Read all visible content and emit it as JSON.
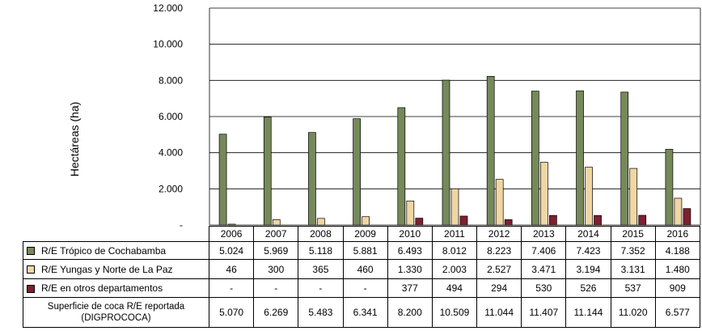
{
  "colors": {
    "tropico": "#76895A",
    "yungas": "#F0D6A4",
    "otros": "#7E2030",
    "grid": "#000000"
  },
  "chart_data": {
    "type": "bar",
    "title": "",
    "xlabel": "",
    "ylabel": "Hectáreas (ha)",
    "ylim": [
      0,
      12000
    ],
    "yticks": [
      "-",
      "2.000",
      "4.000",
      "6.000",
      "8.000",
      "10.000",
      "12.000"
    ],
    "ytick_values": [
      0,
      2000,
      4000,
      6000,
      8000,
      10000,
      12000
    ],
    "grid": true,
    "legend": "table-left",
    "categories": [
      "2006",
      "2007",
      "2008",
      "2009",
      "2010",
      "2011",
      "2012",
      "2013",
      "2014",
      "2015",
      "2016"
    ],
    "series": [
      {
        "name": "R/E Trópico de Cochabamba",
        "values": [
          5024,
          5969,
          5118,
          5881,
          6493,
          8012,
          8223,
          7406,
          7423,
          7352,
          4188
        ],
        "labels": [
          "5.024",
          "5.969",
          "5.118",
          "5.881",
          "6.493",
          "8.012",
          "8.223",
          "7.406",
          "7.423",
          "7.352",
          "4.188"
        ]
      },
      {
        "name": "R/E Yungas y Norte de La Paz",
        "values": [
          46,
          300,
          365,
          460,
          1330,
          2003,
          2527,
          3471,
          3194,
          3131,
          1480
        ],
        "labels": [
          "46",
          "300",
          "365",
          "460",
          "1.330",
          "2.003",
          "2.527",
          "3.471",
          "3.194",
          "3.131",
          "1.480"
        ]
      },
      {
        "name": "R/E en otros departamentos",
        "values": [
          0,
          0,
          0,
          0,
          377,
          494,
          294,
          530,
          526,
          537,
          909
        ],
        "labels": [
          "-",
          "-",
          "-",
          "-",
          "377",
          "494",
          "294",
          "530",
          "526",
          "537",
          "909"
        ]
      }
    ],
    "total": {
      "name": "Superficie de coca R/E reportada (DIGPROCOCA)",
      "labels": [
        "5.070",
        "6.269",
        "5.483",
        "6.341",
        "8.200",
        "10.509",
        "11.044",
        "11.407",
        "11.144",
        "11.020",
        "6.577"
      ]
    }
  }
}
